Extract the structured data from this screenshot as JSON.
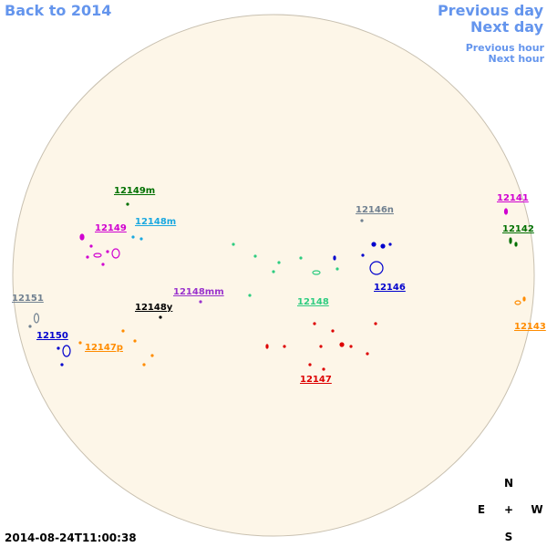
{
  "navigation": {
    "back": "Back to 2014",
    "previous_day": "Previous day",
    "next_day": "Next day",
    "previous_hour": "Previous hour",
    "next_hour": "Next hour"
  },
  "regions": [
    {
      "label": "12149m",
      "color": "#007000"
    },
    {
      "label": "12148m",
      "color": "#1aa8e0"
    },
    {
      "label": "12149",
      "color": "#d000d0"
    },
    {
      "label": "12146n",
      "color": "#708090"
    },
    {
      "label": "12141",
      "color": "#d000d0"
    },
    {
      "label": "12142",
      "color": "#007000"
    },
    {
      "label": "12151",
      "color": "#708090"
    },
    {
      "label": "12148mm",
      "color": "#9932cc"
    },
    {
      "label": "12148y",
      "color": "#000000"
    },
    {
      "label": "12148",
      "color": "#2ecc80"
    },
    {
      "label": "12146",
      "color": "#0000cd"
    },
    {
      "label": "12143",
      "color": "#ff8c00"
    },
    {
      "label": "12150",
      "color": "#0000cd"
    },
    {
      "label": "12147p",
      "color": "#ff8c00"
    },
    {
      "label": "12147",
      "color": "#dd0000"
    }
  ],
  "timestamp": "2014-08-24T11:00:38",
  "compass": {
    "north": "N",
    "east": "E",
    "center": "+",
    "west": "W",
    "south": "S"
  }
}
